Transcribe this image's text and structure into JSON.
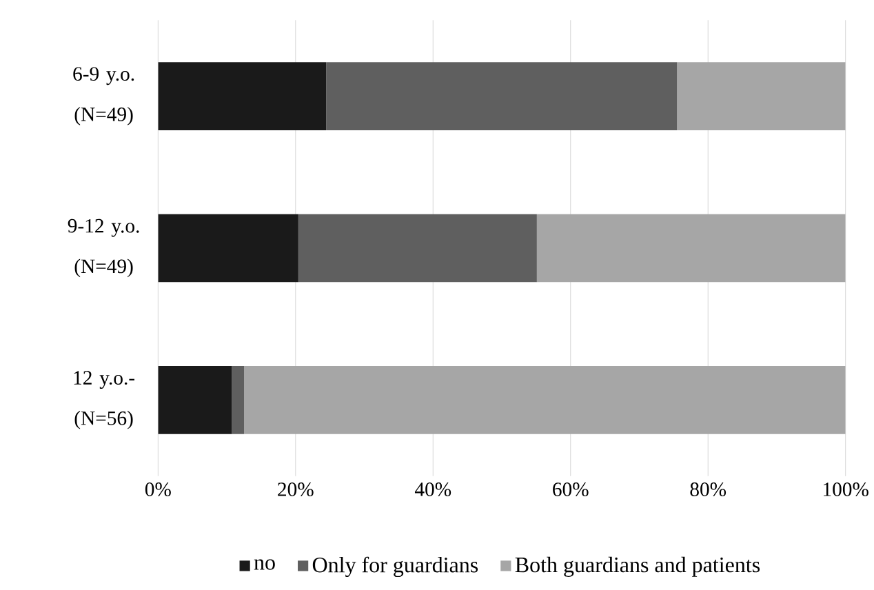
{
  "chart_data": {
    "type": "bar",
    "orientation": "horizontal",
    "stacked": true,
    "categories": [
      "6-9 y.o. (N=49)",
      "9-12 y.o. (N=49)",
      "12 y.o.- (N=56)"
    ],
    "series": [
      {
        "name": "no",
        "color": "#1a1a1a",
        "values": [
          24.5,
          20.4,
          10.7
        ]
      },
      {
        "name": "Only for guardians",
        "color": "#5f5f5f",
        "values": [
          51.0,
          34.7,
          1.8
        ]
      },
      {
        "name": "Both guardians and patients",
        "color": "#a6a6a6",
        "values": [
          24.5,
          44.9,
          87.5
        ]
      }
    ],
    "xlim": [
      0,
      100
    ],
    "xticks": [
      {
        "value": 0,
        "label": "0%"
      },
      {
        "value": 20,
        "label": "20%"
      },
      {
        "value": 40,
        "label": "40%"
      },
      {
        "value": 60,
        "label": "60%"
      },
      {
        "value": 80,
        "label": "80%"
      },
      {
        "value": 100,
        "label": "100%"
      }
    ],
    "grid": "x",
    "legend": "bottom"
  }
}
